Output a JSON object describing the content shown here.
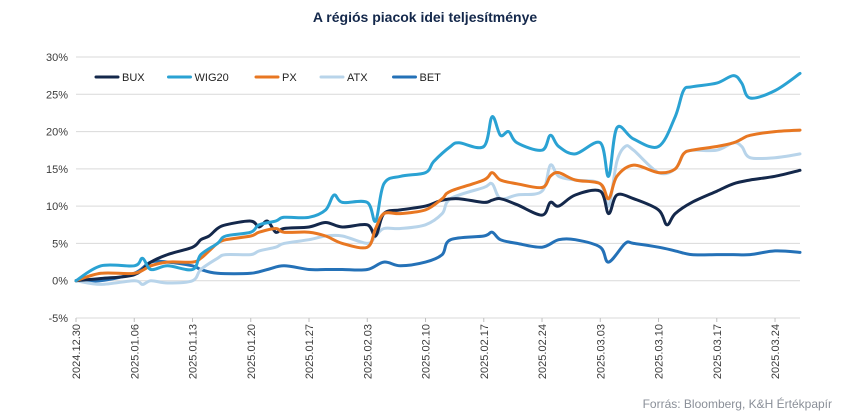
{
  "chart_data": {
    "type": "line",
    "title": "A régiós piacok idei teljesítménye",
    "source": "Forrás: Bloomberg,  K&H Értékpapír",
    "xlabel": "",
    "ylabel": "",
    "ylim": [
      -5,
      30
    ],
    "ytick_labels": [
      "-5%",
      "0%",
      "5%",
      "10%",
      "15%",
      "20%",
      "25%",
      "30%"
    ],
    "ytick_values": [
      -5,
      0,
      5,
      10,
      15,
      20,
      25,
      30
    ],
    "x_start": "2024.12.30",
    "x_end": "2025.03.27",
    "x_tick_labels": [
      "2024.12.30",
      "2025.01.06",
      "2025.01.13",
      "2025.01.20",
      "2025.01.27",
      "2025.02.03",
      "2025.02.10",
      "2025.02.17",
      "2025.02.24",
      "2025.03.03",
      "2025.03.10",
      "2025.03.17",
      "2025.03.24"
    ],
    "grid": "horizontal",
    "legend_position": "top-left",
    "series": [
      {
        "name": "BUX",
        "color": "#14284b",
        "dates": [
          "2024.12.30",
          "2025.01.02",
          "2025.01.06",
          "2025.01.08",
          "2025.01.10",
          "2025.01.13",
          "2025.01.14",
          "2025.01.15",
          "2025.01.16",
          "2025.01.17",
          "2025.01.20",
          "2025.01.21",
          "2025.01.22",
          "2025.01.23",
          "2025.01.24",
          "2025.01.27",
          "2025.01.29",
          "2025.01.31",
          "2025.02.03",
          "2025.02.04",
          "2025.02.05",
          "2025.02.07",
          "2025.02.10",
          "2025.02.12",
          "2025.02.14",
          "2025.02.17",
          "2025.02.18",
          "2025.02.19",
          "2025.02.21",
          "2025.02.24",
          "2025.02.25",
          "2025.02.26",
          "2025.02.28",
          "2025.03.03",
          "2025.03.04",
          "2025.03.05",
          "2025.03.07",
          "2025.03.10",
          "2025.03.11",
          "2025.03.12",
          "2025.03.14",
          "2025.03.17",
          "2025.03.19",
          "2025.03.21",
          "2025.03.24",
          "2025.03.27"
        ],
        "values": [
          0,
          0.3,
          0.8,
          2.5,
          3.5,
          4.5,
          5.5,
          6.0,
          7.0,
          7.5,
          8.0,
          7.2,
          8.0,
          6.5,
          7.0,
          7.2,
          7.8,
          7.2,
          7.5,
          6.0,
          9.0,
          9.5,
          10.0,
          10.8,
          11.0,
          10.5,
          10.8,
          11.0,
          10.2,
          8.8,
          10.5,
          10.0,
          11.5,
          12.0,
          9.0,
          11.5,
          11.0,
          9.5,
          7.5,
          9.0,
          10.5,
          12.0,
          13.0,
          13.5,
          14.0,
          14.8
        ]
      },
      {
        "name": "WIG20",
        "color": "#2aa2d3",
        "dates": [
          "2024.12.30",
          "2025.01.02",
          "2025.01.06",
          "2025.01.07",
          "2025.01.08",
          "2025.01.10",
          "2025.01.13",
          "2025.01.14",
          "2025.01.16",
          "2025.01.17",
          "2025.01.20",
          "2025.01.21",
          "2025.01.23",
          "2025.01.24",
          "2025.01.27",
          "2025.01.29",
          "2025.01.30",
          "2025.01.31",
          "2025.02.03",
          "2025.02.04",
          "2025.02.05",
          "2025.02.07",
          "2025.02.10",
          "2025.02.11",
          "2025.02.13",
          "2025.02.14",
          "2025.02.17",
          "2025.02.18",
          "2025.02.19",
          "2025.02.20",
          "2025.02.21",
          "2025.02.24",
          "2025.02.25",
          "2025.02.26",
          "2025.02.28",
          "2025.03.03",
          "2025.03.04",
          "2025.03.05",
          "2025.03.07",
          "2025.03.10",
          "2025.03.12",
          "2025.03.13",
          "2025.03.14",
          "2025.03.17",
          "2025.03.19",
          "2025.03.20",
          "2025.03.21",
          "2025.03.24",
          "2025.03.27"
        ],
        "values": [
          0,
          2.0,
          2.0,
          3.0,
          1.5,
          2.0,
          1.5,
          3.5,
          5.0,
          6.0,
          6.5,
          7.5,
          8.0,
          8.5,
          8.5,
          9.5,
          11.5,
          10.5,
          10.5,
          8.0,
          13.0,
          14.0,
          14.5,
          16.0,
          18.0,
          18.5,
          18.0,
          22.0,
          19.5,
          20.0,
          18.5,
          17.5,
          19.5,
          18.0,
          17.0,
          18.5,
          14.0,
          20.5,
          19.0,
          18.0,
          22.0,
          25.5,
          26.0,
          26.5,
          27.5,
          26.5,
          24.5,
          25.5,
          27.8
        ]
      },
      {
        "name": "PX",
        "color": "#e87722",
        "dates": [
          "2024.12.30",
          "2025.01.02",
          "2025.01.06",
          "2025.01.08",
          "2025.01.10",
          "2025.01.13",
          "2025.01.14",
          "2025.01.15",
          "2025.01.16",
          "2025.01.17",
          "2025.01.20",
          "2025.01.21",
          "2025.01.23",
          "2025.01.24",
          "2025.01.27",
          "2025.01.29",
          "2025.01.31",
          "2025.02.03",
          "2025.02.04",
          "2025.02.05",
          "2025.02.07",
          "2025.02.10",
          "2025.02.12",
          "2025.02.13",
          "2025.02.17",
          "2025.02.18",
          "2025.02.19",
          "2025.02.21",
          "2025.02.24",
          "2025.02.25",
          "2025.02.26",
          "2025.02.28",
          "2025.03.03",
          "2025.03.04",
          "2025.03.05",
          "2025.03.07",
          "2025.03.10",
          "2025.03.12",
          "2025.03.13",
          "2025.03.14",
          "2025.03.17",
          "2025.03.19",
          "2025.03.20",
          "2025.03.21",
          "2025.03.24",
          "2025.03.27"
        ],
        "values": [
          0,
          1.0,
          1.0,
          2.0,
          2.5,
          2.5,
          3.0,
          4.0,
          5.0,
          5.5,
          6.0,
          6.5,
          7.0,
          6.5,
          6.5,
          6.0,
          5.0,
          4.5,
          7.0,
          9.0,
          9.0,
          9.5,
          11.0,
          12.0,
          13.5,
          14.5,
          13.5,
          13.0,
          12.5,
          14.0,
          14.5,
          13.5,
          13.0,
          11.0,
          14.0,
          15.5,
          14.5,
          15.0,
          17.0,
          17.5,
          18.0,
          18.5,
          19.0,
          19.5,
          20.0,
          20.2
        ]
      },
      {
        "name": "ATX",
        "color": "#b8d4ea",
        "dates": [
          "2024.12.30",
          "2025.01.02",
          "2025.01.06",
          "2025.01.07",
          "2025.01.08",
          "2025.01.10",
          "2025.01.13",
          "2025.01.14",
          "2025.01.16",
          "2025.01.17",
          "2025.01.20",
          "2025.01.21",
          "2025.01.23",
          "2025.01.24",
          "2025.01.27",
          "2025.01.29",
          "2025.01.31",
          "2025.02.03",
          "2025.02.04",
          "2025.02.05",
          "2025.02.07",
          "2025.02.10",
          "2025.02.12",
          "2025.02.13",
          "2025.02.17",
          "2025.02.18",
          "2025.02.19",
          "2025.02.21",
          "2025.02.24",
          "2025.02.25",
          "2025.02.26",
          "2025.02.28",
          "2025.03.03",
          "2025.03.04",
          "2025.03.05",
          "2025.03.06",
          "2025.03.07",
          "2025.03.10",
          "2025.03.12",
          "2025.03.13",
          "2025.03.14",
          "2025.03.17",
          "2025.03.19",
          "2025.03.20",
          "2025.03.21",
          "2025.03.24",
          "2025.03.27"
        ],
        "values": [
          0,
          -0.5,
          0,
          -0.5,
          0,
          -0.3,
          0,
          1.5,
          3.0,
          3.5,
          3.5,
          4.0,
          4.5,
          5.0,
          5.5,
          6.0,
          6.0,
          5.0,
          6.0,
          7.0,
          7.0,
          7.5,
          9.0,
          11.0,
          12.5,
          13.0,
          11.0,
          11.5,
          12.0,
          15.5,
          14.0,
          13.5,
          13.0,
          10.0,
          16.0,
          18.0,
          17.5,
          14.5,
          15.0,
          17.0,
          17.5,
          17.5,
          18.5,
          18.0,
          16.5,
          16.5,
          17.0
        ]
      },
      {
        "name": "BET",
        "color": "#2471b7",
        "dates": [
          "2024.12.30",
          "2025.01.02",
          "2025.01.06",
          "2025.01.08",
          "2025.01.10",
          "2025.01.13",
          "2025.01.14",
          "2025.01.16",
          "2025.01.20",
          "2025.01.22",
          "2025.01.24",
          "2025.01.27",
          "2025.01.29",
          "2025.01.31",
          "2025.02.03",
          "2025.02.05",
          "2025.02.07",
          "2025.02.10",
          "2025.02.12",
          "2025.02.13",
          "2025.02.17",
          "2025.02.18",
          "2025.02.19",
          "2025.02.21",
          "2025.02.24",
          "2025.02.26",
          "2025.02.28",
          "2025.03.03",
          "2025.03.04",
          "2025.03.06",
          "2025.03.07",
          "2025.03.10",
          "2025.03.12",
          "2025.03.14",
          "2025.03.17",
          "2025.03.19",
          "2025.03.21",
          "2025.03.24",
          "2025.03.27"
        ],
        "values": [
          0,
          0,
          1.0,
          2.5,
          2.5,
          2.0,
          1.5,
          1.0,
          1.0,
          1.5,
          2.0,
          1.5,
          1.5,
          1.5,
          1.5,
          2.5,
          2.0,
          2.5,
          3.5,
          5.5,
          6.0,
          6.5,
          5.5,
          5.0,
          4.5,
          5.5,
          5.5,
          4.5,
          2.5,
          5.0,
          5.0,
          4.5,
          4.0,
          3.5,
          3.5,
          3.5,
          3.5,
          4.0,
          3.8
        ]
      }
    ]
  }
}
